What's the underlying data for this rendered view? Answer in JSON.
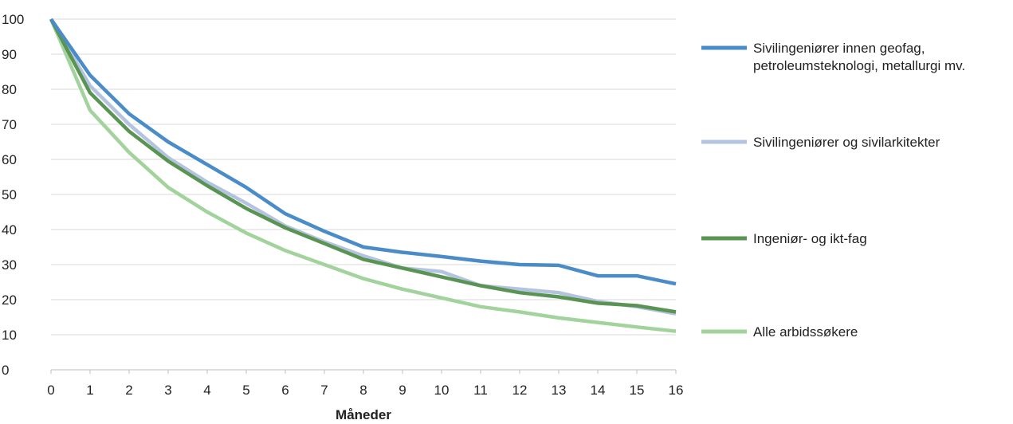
{
  "chart_data": {
    "type": "line",
    "title": "",
    "xlabel": "Måneder",
    "ylabel": "",
    "x": [
      0,
      1,
      2,
      3,
      4,
      5,
      6,
      7,
      8,
      9,
      10,
      11,
      12,
      13,
      14,
      15,
      16
    ],
    "xlim": [
      0,
      16
    ],
    "ylim": [
      0,
      100
    ],
    "y_ticks": [
      0,
      10,
      20,
      30,
      40,
      50,
      60,
      70,
      80,
      90,
      100
    ],
    "grid": true,
    "legend_position": "right",
    "series": [
      {
        "name": "Sivilingeniører og sivilarkitekter",
        "name_lines": [
          "Sivilingeniører og sivilarkitekter"
        ],
        "color": "#b4c3e0",
        "values": [
          100,
          81,
          70,
          60.5,
          53.5,
          47.5,
          41,
          36.5,
          32.5,
          29,
          28,
          24,
          23,
          22,
          19.5,
          18,
          16
        ]
      },
      {
        "name": "Alle arbidssøkere",
        "name_lines": [
          "Alle arbidssøkere"
        ],
        "color": "#a3d39c",
        "values": [
          100,
          74,
          62,
          52,
          45,
          39,
          34,
          30,
          26,
          23,
          20.5,
          18,
          16.5,
          14.8,
          13.5,
          12.2,
          11
        ]
      },
      {
        "name": "Ingeniør- og ikt-fag",
        "name_lines": [
          "Ingeniør- og ikt-fag"
        ],
        "color": "#5a9452",
        "values": [
          100,
          79,
          68,
          59.5,
          52.5,
          46,
          40.5,
          36,
          31.5,
          29,
          26.5,
          24,
          22,
          20.8,
          19,
          18.3,
          16.5
        ]
      },
      {
        "name": "Sivilingeniører innen geofag, petroleumsteknologi, metallurgi mv.",
        "name_lines": [
          "Sivilingeniører innen geofag,",
          "petroleumsteknologi, metallurgi mv."
        ],
        "color": "#4a8cc8",
        "values": [
          100,
          84,
          73,
          65,
          58.5,
          52,
          44.5,
          39.5,
          35,
          33.5,
          32.3,
          31,
          30,
          29.8,
          26.8,
          26.8,
          24.5
        ]
      }
    ],
    "legend_order": [
      3,
      0,
      2,
      1
    ]
  }
}
